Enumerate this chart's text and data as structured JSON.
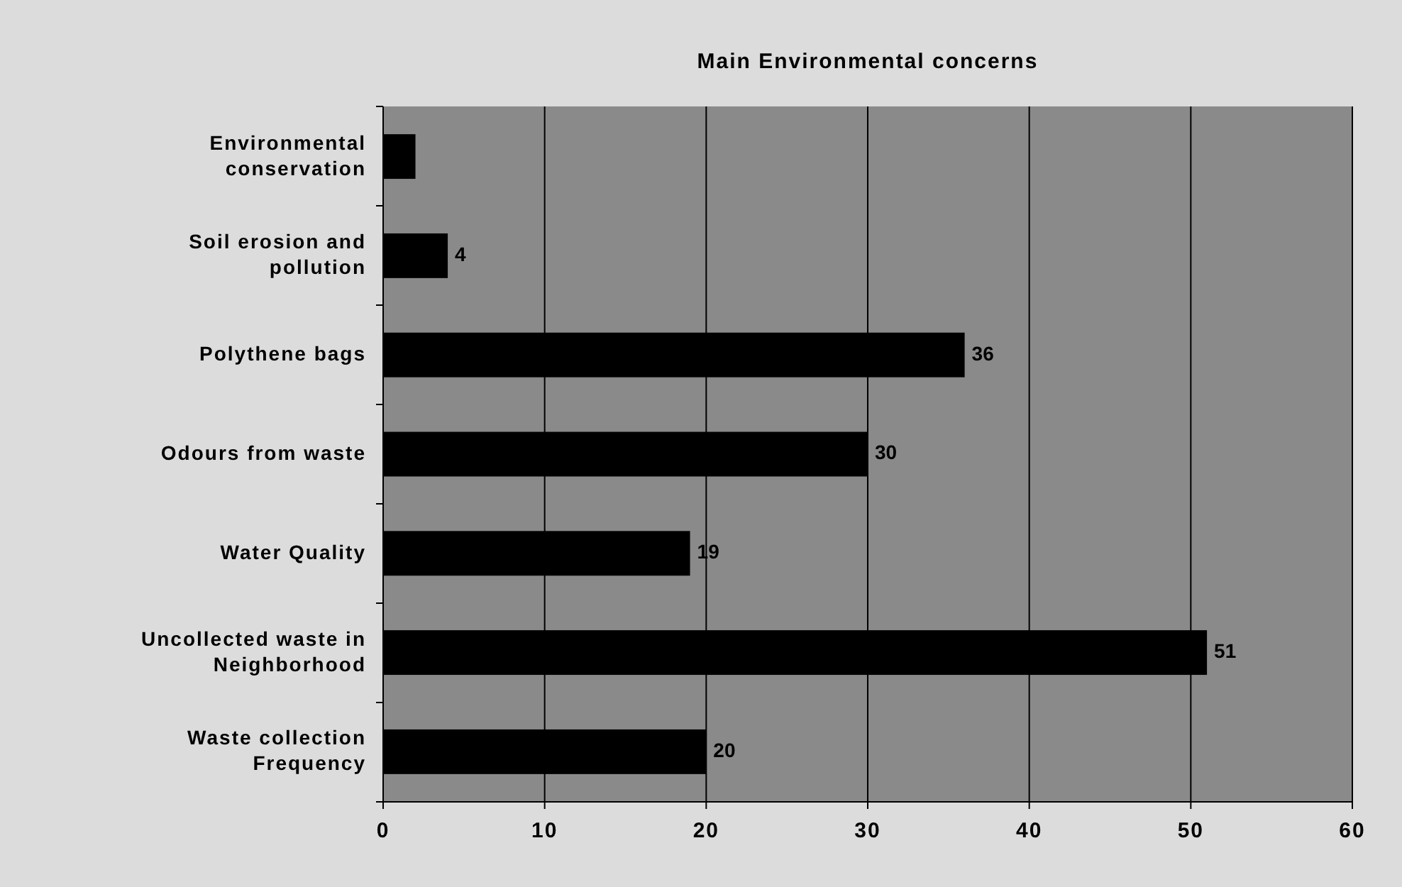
{
  "chart_data": {
    "type": "bar",
    "orientation": "horizontal",
    "title": "Main Environmental concerns",
    "categories": [
      "Environmental conservation",
      "Soil erosion and pollution",
      "Polythene bags",
      "Odours from waste",
      "Water Quality",
      "Uncollected waste in Neighborhood",
      "Waste collection Frequency"
    ],
    "values": [
      2,
      4,
      36,
      30,
      19,
      51,
      20
    ],
    "value_labels": [
      null,
      "4",
      "36",
      "30",
      "19",
      "51",
      "20"
    ],
    "color": "#000000",
    "xlim": [
      0,
      60
    ],
    "xticks": [
      0,
      10,
      20,
      30,
      40,
      50,
      60
    ],
    "grid": "x"
  }
}
